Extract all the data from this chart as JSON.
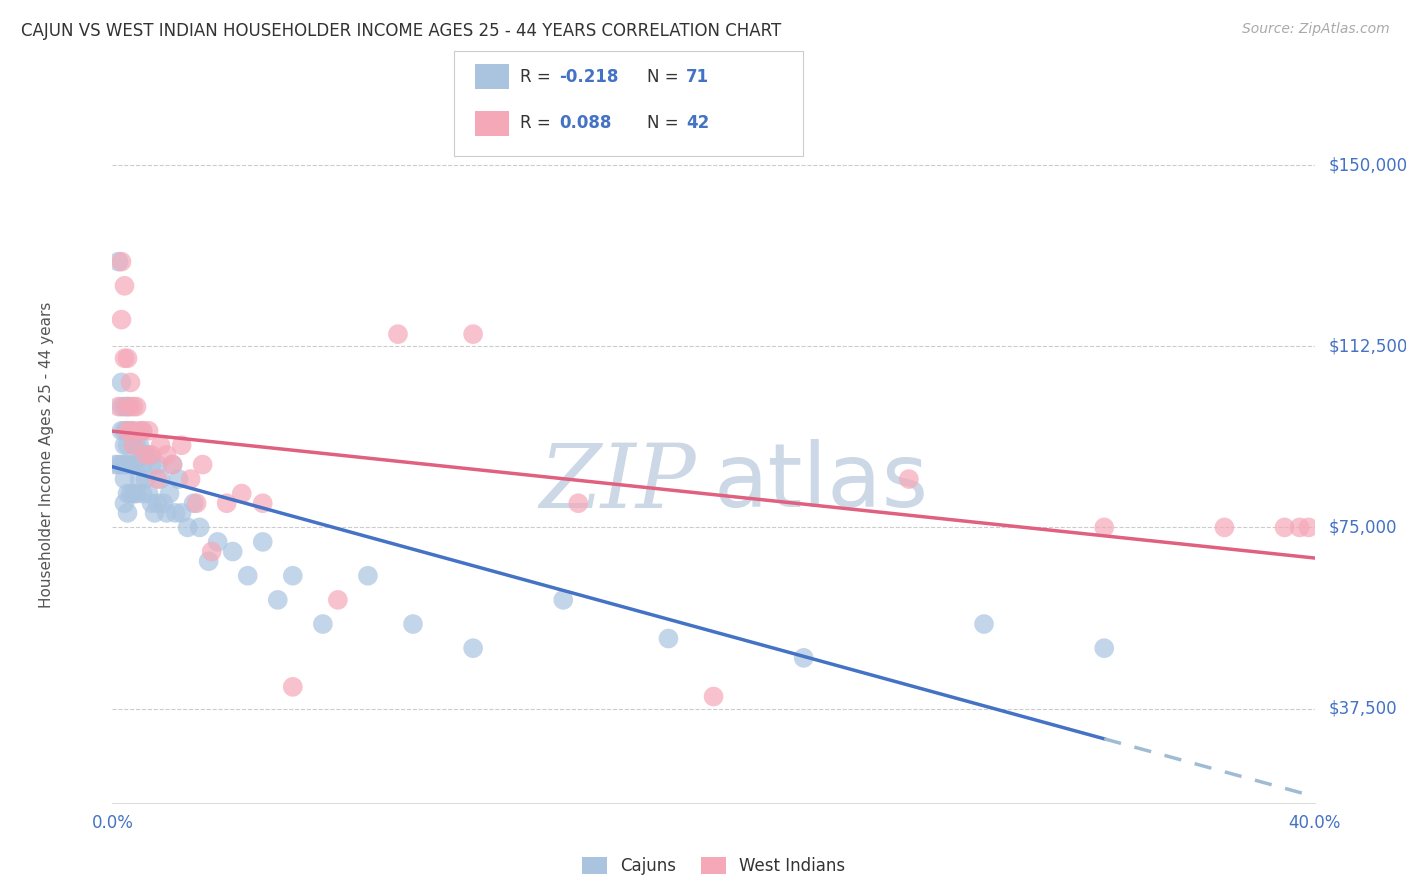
{
  "title": "CAJUN VS WEST INDIAN HOUSEHOLDER INCOME AGES 25 - 44 YEARS CORRELATION CHART",
  "source": "Source: ZipAtlas.com",
  "ylabel": "Householder Income Ages 25 - 44 years",
  "ytick_labels": [
    "$37,500",
    "$75,000",
    "$112,500",
    "$150,000"
  ],
  "ytick_values": [
    37500,
    75000,
    112500,
    150000
  ],
  "ymin": 18000,
  "ymax": 162000,
  "xmin": 0.0,
  "xmax": 0.4,
  "legend_cajun_R": "-0.218",
  "legend_cajun_N": "71",
  "legend_wi_R": "0.088",
  "legend_wi_N": "42",
  "cajun_color": "#aac4e0",
  "wi_color": "#f5a8b8",
  "blue_line_color": "#4472c4",
  "pink_line_color": "#e06080",
  "dashed_line_color": "#a0bcd4",
  "title_color": "#333333",
  "axis_label_color": "#4472c4",
  "watermark_color": "#ccd8e6",
  "background_color": "#ffffff",
  "cajun_x": [
    0.001,
    0.002,
    0.002,
    0.003,
    0.003,
    0.003,
    0.003,
    0.004,
    0.004,
    0.004,
    0.004,
    0.004,
    0.004,
    0.005,
    0.005,
    0.005,
    0.005,
    0.005,
    0.005,
    0.006,
    0.006,
    0.006,
    0.006,
    0.007,
    0.007,
    0.007,
    0.007,
    0.008,
    0.008,
    0.008,
    0.009,
    0.009,
    0.01,
    0.01,
    0.01,
    0.011,
    0.011,
    0.012,
    0.012,
    0.013,
    0.013,
    0.014,
    0.015,
    0.015,
    0.016,
    0.017,
    0.018,
    0.019,
    0.02,
    0.021,
    0.022,
    0.023,
    0.025,
    0.027,
    0.029,
    0.032,
    0.035,
    0.04,
    0.045,
    0.05,
    0.055,
    0.06,
    0.07,
    0.085,
    0.1,
    0.12,
    0.15,
    0.185,
    0.23,
    0.29,
    0.33
  ],
  "cajun_y": [
    88000,
    130000,
    88000,
    105000,
    100000,
    95000,
    88000,
    100000,
    95000,
    92000,
    88000,
    85000,
    80000,
    100000,
    95000,
    92000,
    88000,
    82000,
    78000,
    100000,
    95000,
    88000,
    82000,
    95000,
    92000,
    88000,
    82000,
    92000,
    88000,
    82000,
    92000,
    85000,
    95000,
    88000,
    82000,
    90000,
    85000,
    90000,
    82000,
    88000,
    80000,
    78000,
    88000,
    80000,
    85000,
    80000,
    78000,
    82000,
    88000,
    78000,
    85000,
    78000,
    75000,
    80000,
    75000,
    68000,
    72000,
    70000,
    65000,
    72000,
    60000,
    65000,
    55000,
    65000,
    55000,
    50000,
    60000,
    52000,
    48000,
    55000,
    50000
  ],
  "wi_x": [
    0.002,
    0.003,
    0.003,
    0.004,
    0.004,
    0.005,
    0.005,
    0.005,
    0.006,
    0.006,
    0.007,
    0.007,
    0.008,
    0.009,
    0.01,
    0.011,
    0.012,
    0.013,
    0.015,
    0.016,
    0.018,
    0.02,
    0.023,
    0.026,
    0.028,
    0.03,
    0.033,
    0.038,
    0.043,
    0.05,
    0.06,
    0.075,
    0.095,
    0.12,
    0.155,
    0.2,
    0.265,
    0.33,
    0.37,
    0.39,
    0.395,
    0.398
  ],
  "wi_y": [
    100000,
    130000,
    118000,
    125000,
    110000,
    110000,
    100000,
    95000,
    105000,
    95000,
    100000,
    92000,
    100000,
    95000,
    95000,
    90000,
    95000,
    90000,
    85000,
    92000,
    90000,
    88000,
    92000,
    85000,
    80000,
    88000,
    70000,
    80000,
    82000,
    80000,
    42000,
    60000,
    115000,
    115000,
    80000,
    40000,
    85000,
    75000,
    75000,
    75000,
    75000,
    75000
  ]
}
